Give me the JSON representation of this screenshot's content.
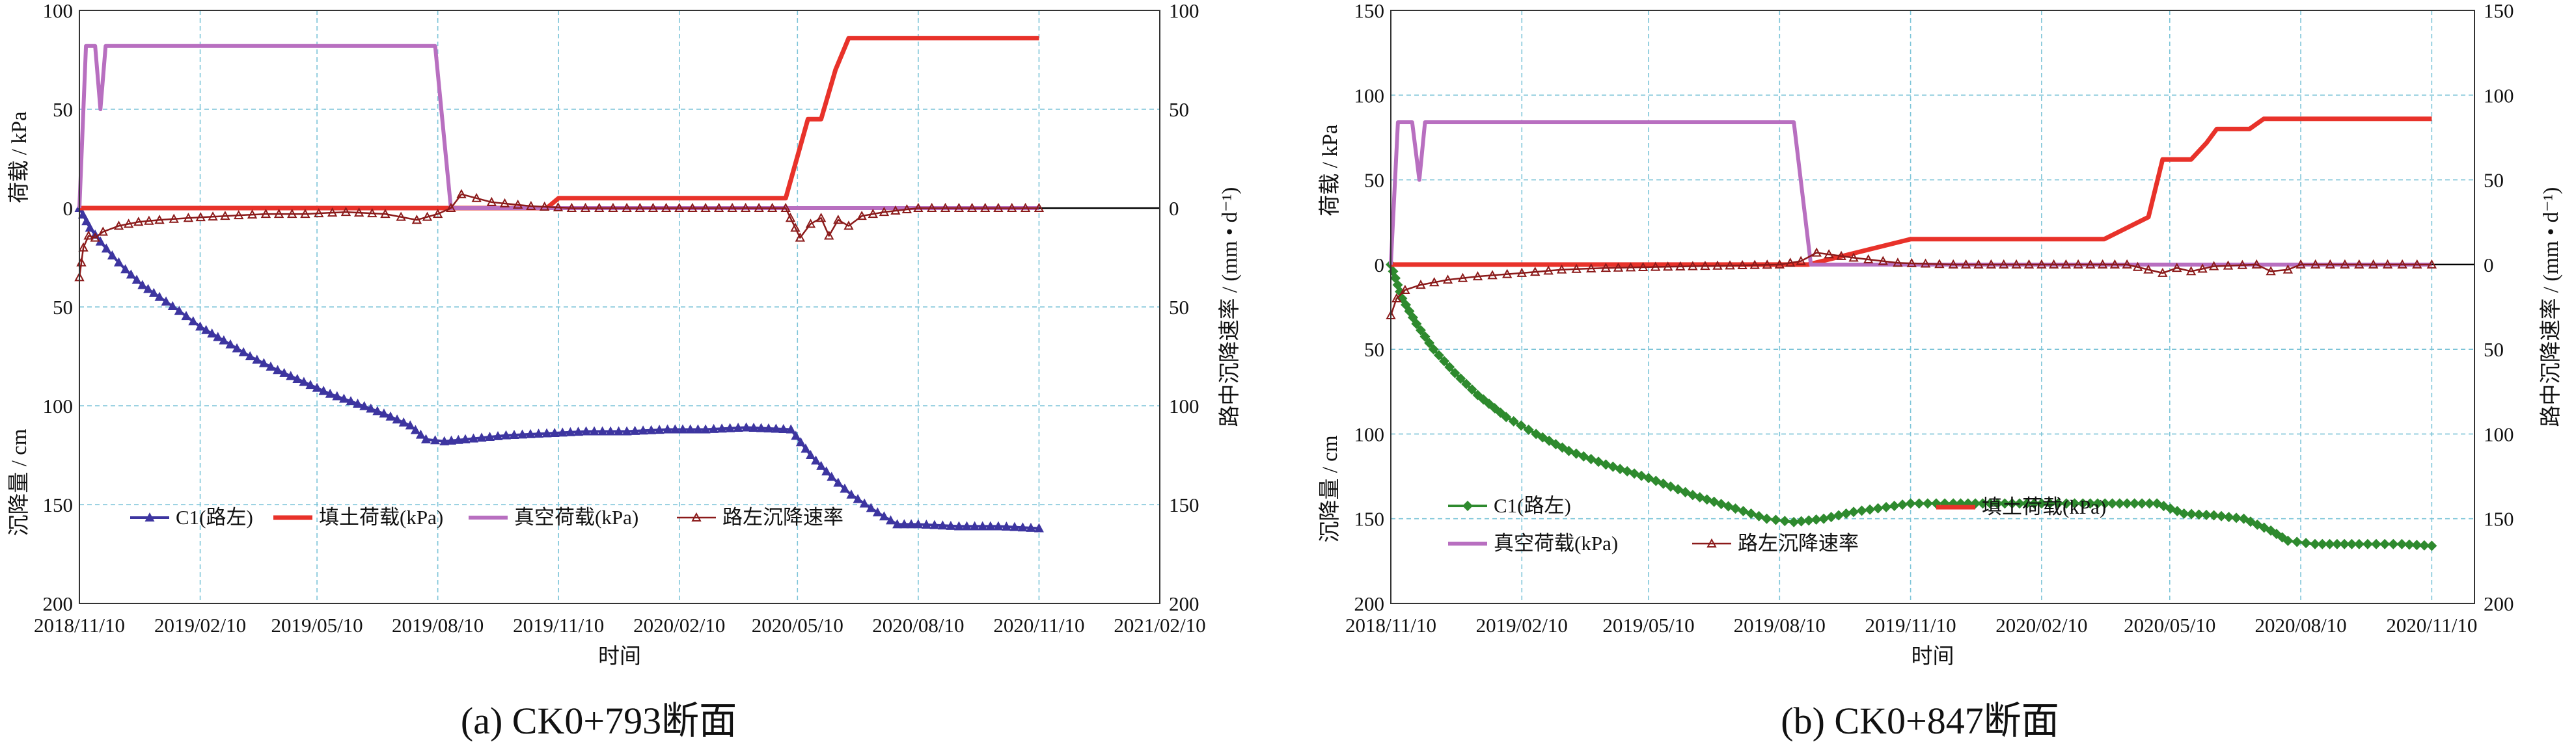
{
  "chart_data": [
    {
      "type": "line",
      "title": "",
      "caption": "(a) CK0+793断面",
      "xlabel": "时间",
      "ylabel_upper": "荷载 / kPa",
      "ylabel_lower": "沉降量 / cm",
      "ylabel_right": "路中沉降速率 / (mm • d⁻¹)",
      "xlim": [
        "2018-11-10",
        "2021-02-10"
      ],
      "x_ticks": [
        "2018/11/10",
        "2019/02/10",
        "2019/05/10",
        "2019/08/10",
        "2019/11/10",
        "2020/02/10",
        "2020/05/10",
        "2020/08/10",
        "2020/11/10",
        "2021/02/10"
      ],
      "y_range": [
        100,
        -200
      ],
      "y_tick_labels": [
        "100",
        "50",
        "0",
        "50",
        "100",
        "150",
        "200"
      ],
      "y_tick_values": [
        100,
        50,
        0,
        -50,
        -100,
        -150,
        -200
      ],
      "legend_placement": "bottom-left",
      "series": [
        {
          "name": "C1(路左)",
          "color": "#3d35a0",
          "marker": "triangle",
          "width": 4,
          "points": [
            [
              "2018-11-10",
              0
            ],
            [
              "2018-11-18",
              -10
            ],
            [
              "2018-11-26",
              -17
            ],
            [
              "2018-12-05",
              -24
            ],
            [
              "2018-12-15",
              -31
            ],
            [
              "2018-12-28",
              -39
            ],
            [
              "2019-01-10",
              -45
            ],
            [
              "2019-01-25",
              -52
            ],
            [
              "2019-02-10",
              -60
            ],
            [
              "2019-02-28",
              -67
            ],
            [
              "2019-03-20",
              -75
            ],
            [
              "2019-04-10",
              -82
            ],
            [
              "2019-04-30",
              -88
            ],
            [
              "2019-05-20",
              -94
            ],
            [
              "2019-06-10",
              -99
            ],
            [
              "2019-06-30",
              -104
            ],
            [
              "2019-07-20",
              -110
            ],
            [
              "2019-08-01",
              -117
            ],
            [
              "2019-08-15",
              -118
            ],
            [
              "2019-08-31",
              -117
            ],
            [
              "2019-10-01",
              -115
            ],
            [
              "2019-11-01",
              -114
            ],
            [
              "2019-12-01",
              -113
            ],
            [
              "2020-01-01",
              -113
            ],
            [
              "2020-02-01",
              -112
            ],
            [
              "2020-03-01",
              -112
            ],
            [
              "2020-04-01",
              -111
            ],
            [
              "2020-05-05",
              -112
            ],
            [
              "2020-05-20",
              -125
            ],
            [
              "2020-06-05",
              -136
            ],
            [
              "2020-06-20",
              -145
            ],
            [
              "2020-07-10",
              -154
            ],
            [
              "2020-07-25",
              -160
            ],
            [
              "2020-08-10",
              -160
            ],
            [
              "2020-09-10",
              -161
            ],
            [
              "2020-10-10",
              -161
            ],
            [
              "2020-11-10",
              -162
            ]
          ]
        },
        {
          "name": "填土荷载(kPa)",
          "color": "#e8322a",
          "marker": "none",
          "width": 7,
          "points": [
            [
              "2018-11-10",
              0
            ],
            [
              "2019-11-01",
              0
            ],
            [
              "2019-11-10",
              5
            ],
            [
              "2020-05-01",
              5
            ],
            [
              "2020-05-18",
              45
            ],
            [
              "2020-05-28",
              45
            ],
            [
              "2020-06-08",
              70
            ],
            [
              "2020-06-18",
              86
            ],
            [
              "2020-11-10",
              86
            ]
          ]
        },
        {
          "name": "真空荷载(kPa)",
          "color": "#b86fc0",
          "marker": "none",
          "width": 6,
          "points": [
            [
              "2018-11-10",
              0
            ],
            [
              "2018-11-15",
              82
            ],
            [
              "2018-11-22",
              82
            ],
            [
              "2018-11-26",
              50
            ],
            [
              "2018-11-30",
              82
            ],
            [
              "2019-08-08",
              82
            ],
            [
              "2019-08-20",
              0
            ],
            [
              "2020-11-10",
              0
            ]
          ]
        },
        {
          "name": "路左沉降速率",
          "color": "#8b1a1a",
          "marker": "open-triangle",
          "width": 2.5,
          "points": [
            [
              "2018-11-10",
              -35
            ],
            [
              "2018-11-13",
              -20
            ],
            [
              "2018-11-17",
              -14
            ],
            [
              "2018-11-22",
              -15
            ],
            [
              "2018-11-28",
              -12
            ],
            [
              "2018-12-10",
              -9
            ],
            [
              "2018-12-25",
              -7
            ],
            [
              "2019-01-10",
              -6
            ],
            [
              "2019-02-01",
              -5
            ],
            [
              "2019-03-01",
              -4
            ],
            [
              "2019-04-01",
              -3
            ],
            [
              "2019-05-01",
              -3
            ],
            [
              "2019-06-01",
              -2
            ],
            [
              "2019-07-01",
              -3
            ],
            [
              "2019-07-25",
              -6
            ],
            [
              "2019-08-10",
              -3
            ],
            [
              "2019-08-20",
              0
            ],
            [
              "2019-08-28",
              7
            ],
            [
              "2019-09-20",
              3
            ],
            [
              "2019-10-20",
              1
            ],
            [
              "2019-11-20",
              0
            ],
            [
              "2020-01-01",
              0
            ],
            [
              "2020-03-01",
              0
            ],
            [
              "2020-05-01",
              0
            ],
            [
              "2020-05-12",
              -15
            ],
            [
              "2020-05-20",
              -8
            ],
            [
              "2020-05-28",
              -5
            ],
            [
              "2020-06-03",
              -14
            ],
            [
              "2020-06-10",
              -6
            ],
            [
              "2020-06-18",
              -9
            ],
            [
              "2020-06-28",
              -4
            ],
            [
              "2020-07-15",
              -2
            ],
            [
              "2020-08-10",
              0
            ],
            [
              "2020-09-10",
              0
            ],
            [
              "2020-10-10",
              0
            ],
            [
              "2020-11-10",
              0
            ]
          ]
        }
      ]
    },
    {
      "type": "line",
      "title": "",
      "caption": "(b) CK0+847断面",
      "xlabel": "时间",
      "ylabel_upper": "荷载 / kPa",
      "ylabel_lower": "沉降量 / cm",
      "ylabel_right": "路中沉降速率 / (mm • d⁻¹)",
      "xlim": [
        "2018-11-10",
        "2020-12-10"
      ],
      "x_ticks": [
        "2018/11/10",
        "2019/02/10",
        "2019/05/10",
        "2019/08/10",
        "2019/11/10",
        "2020/02/10",
        "2020/05/10",
        "2020/08/10",
        "2020/11/10"
      ],
      "y_range": [
        150,
        -200
      ],
      "y_tick_labels": [
        "150",
        "100",
        "50",
        "0",
        "50",
        "100",
        "150",
        "200"
      ],
      "y_tick_values": [
        150,
        100,
        50,
        0,
        -50,
        -100,
        -150,
        -200
      ],
      "legend_placement": "bottom-left",
      "series": [
        {
          "name": "C1(路左)",
          "color": "#2e8a2e",
          "marker": "diamond",
          "width": 4,
          "points": [
            [
              "2018-11-10",
              0
            ],
            [
              "2018-11-18",
              -20
            ],
            [
              "2018-11-28",
              -35
            ],
            [
              "2018-12-10",
              -50
            ],
            [
              "2018-12-25",
              -64
            ],
            [
              "2019-01-10",
              -77
            ],
            [
              "2019-01-30",
              -90
            ],
            [
              "2019-02-20",
              -100
            ],
            [
              "2019-03-15",
              -110
            ],
            [
              "2019-04-10",
              -118
            ],
            [
              "2019-05-10",
              -126
            ],
            [
              "2019-06-10",
              -136
            ],
            [
              "2019-07-10",
              -144
            ],
            [
              "2019-08-01",
              -150
            ],
            [
              "2019-08-20",
              -152
            ],
            [
              "2019-09-10",
              -150
            ],
            [
              "2019-10-01",
              -146
            ],
            [
              "2019-11-10",
              -141
            ],
            [
              "2019-12-10",
              -141
            ],
            [
              "2020-01-10",
              -141
            ],
            [
              "2020-02-10",
              -141
            ],
            [
              "2020-03-10",
              -141
            ],
            [
              "2020-04-10",
              -141
            ],
            [
              "2020-05-01",
              -141
            ],
            [
              "2020-05-20",
              -147
            ],
            [
              "2020-06-10",
              -148
            ],
            [
              "2020-07-01",
              -150
            ],
            [
              "2020-07-20",
              -157
            ],
            [
              "2020-08-01",
              -163
            ],
            [
              "2020-08-20",
              -165
            ],
            [
              "2020-09-20",
              -165
            ],
            [
              "2020-10-20",
              -165
            ],
            [
              "2020-11-10",
              -166
            ]
          ]
        },
        {
          "name": "填土荷载(kPa)",
          "color": "#e8322a",
          "marker": "none",
          "width": 7,
          "points": [
            [
              "2018-11-10",
              0
            ],
            [
              "2019-08-30",
              0
            ],
            [
              "2019-11-10",
              15
            ],
            [
              "2020-03-25",
              15
            ],
            [
              "2020-04-25",
              28
            ],
            [
              "2020-05-05",
              62
            ],
            [
              "2020-05-25",
              62
            ],
            [
              "2020-06-05",
              72
            ],
            [
              "2020-06-12",
              80
            ],
            [
              "2020-07-05",
              80
            ],
            [
              "2020-07-15",
              86
            ],
            [
              "2020-11-10",
              86
            ]
          ]
        },
        {
          "name": "真空荷载(kPa)",
          "color": "#b86fc0",
          "marker": "none",
          "width": 6,
          "points": [
            [
              "2018-11-10",
              0
            ],
            [
              "2018-11-15",
              84
            ],
            [
              "2018-11-25",
              84
            ],
            [
              "2018-11-30",
              50
            ],
            [
              "2018-12-04",
              84
            ],
            [
              "2019-08-20",
              84
            ],
            [
              "2019-09-01",
              0
            ],
            [
              "2020-11-10",
              0
            ]
          ]
        },
        {
          "name": "路左沉降速率",
          "color": "#8b1a1a",
          "marker": "open-triangle",
          "width": 2.5,
          "points": [
            [
              "2018-11-10",
              -30
            ],
            [
              "2018-11-14",
              -20
            ],
            [
              "2018-11-20",
              -15
            ],
            [
              "2018-12-01",
              -12
            ],
            [
              "2018-12-20",
              -9
            ],
            [
              "2019-01-10",
              -7
            ],
            [
              "2019-02-10",
              -5
            ],
            [
              "2019-03-10",
              -3
            ],
            [
              "2019-04-10",
              -2
            ],
            [
              "2019-06-10",
              -1
            ],
            [
              "2019-08-10",
              0
            ],
            [
              "2019-08-25",
              2
            ],
            [
              "2019-09-05",
              7
            ],
            [
              "2019-10-01",
              4
            ],
            [
              "2019-11-01",
              1
            ],
            [
              "2019-12-10",
              0
            ],
            [
              "2020-02-10",
              0
            ],
            [
              "2020-04-10",
              0
            ],
            [
              "2020-04-25",
              -3
            ],
            [
              "2020-05-05",
              -5
            ],
            [
              "2020-05-15",
              -2
            ],
            [
              "2020-05-25",
              -4
            ],
            [
              "2020-06-10",
              -1
            ],
            [
              "2020-07-10",
              0
            ],
            [
              "2020-07-20",
              -4
            ],
            [
              "2020-08-01",
              -3
            ],
            [
              "2020-08-10",
              0
            ],
            [
              "2020-09-10",
              0
            ],
            [
              "2020-10-10",
              0
            ],
            [
              "2020-11-10",
              0
            ]
          ]
        }
      ]
    }
  ]
}
